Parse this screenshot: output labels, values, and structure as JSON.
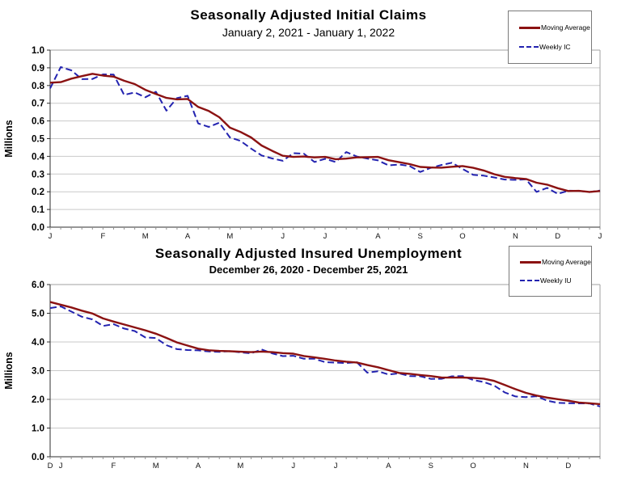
{
  "page": {
    "background": "#FFFFFF"
  },
  "colors": {
    "grid": "#C9C9C9",
    "axis": "#2F2F2F",
    "frame": "#A0A0A0",
    "tick": "#909090",
    "text": "#000000"
  },
  "chart_data": [
    {
      "type": "line",
      "title": "Seasonally Adjusted Initial Claims",
      "subtitle": "January 2, 2021 - January 1, 2022",
      "ylabel": "Millions",
      "xlabel": "",
      "ylim": [
        0.0,
        1.0
      ],
      "ytick_step": 0.1,
      "ytick_decimals": 1,
      "grid": "horizontal",
      "legend_position": "top-right",
      "n_weeks": 53,
      "x_month_ticks": [
        {
          "label": "J",
          "week": 0
        },
        {
          "label": "F",
          "week": 5
        },
        {
          "label": "M",
          "week": 9
        },
        {
          "label": "A",
          "week": 13
        },
        {
          "label": "M",
          "week": 17
        },
        {
          "label": "J",
          "week": 22
        },
        {
          "label": "J",
          "week": 26
        },
        {
          "label": "A",
          "week": 31
        },
        {
          "label": "S",
          "week": 35
        },
        {
          "label": "O",
          "week": 39
        },
        {
          "label": "N",
          "week": 44
        },
        {
          "label": "D",
          "week": 48
        },
        {
          "label": "J",
          "week": 52
        }
      ],
      "series": [
        {
          "name": "Moving Average",
          "color": "#8B1212",
          "style": "solid",
          "values": [
            0.816,
            0.819,
            0.839,
            0.853,
            0.866,
            0.856,
            0.85,
            0.827,
            0.808,
            0.776,
            0.752,
            0.73,
            0.722,
            0.724,
            0.679,
            0.656,
            0.621,
            0.562,
            0.538,
            0.507,
            0.461,
            0.431,
            0.403,
            0.397,
            0.399,
            0.394,
            0.397,
            0.384,
            0.387,
            0.394,
            0.395,
            0.397,
            0.378,
            0.367,
            0.356,
            0.34,
            0.337,
            0.336,
            0.341,
            0.345,
            0.335,
            0.32,
            0.299,
            0.284,
            0.277,
            0.272,
            0.251,
            0.24,
            0.22,
            0.204,
            0.205,
            0.199,
            0.204
          ]
        },
        {
          "name": "Weekly IC",
          "color": "#2323B0",
          "style": "dashed",
          "values": [
            0.784,
            0.904,
            0.886,
            0.836,
            0.837,
            0.863,
            0.862,
            0.747,
            0.761,
            0.734,
            0.765,
            0.658,
            0.729,
            0.742,
            0.586,
            0.566,
            0.59,
            0.507,
            0.487,
            0.444,
            0.405,
            0.388,
            0.375,
            0.418,
            0.415,
            0.368,
            0.386,
            0.368,
            0.424,
            0.399,
            0.387,
            0.377,
            0.349,
            0.354,
            0.345,
            0.312,
            0.335,
            0.351,
            0.364,
            0.329,
            0.296,
            0.291,
            0.281,
            0.269,
            0.267,
            0.27,
            0.199,
            0.222,
            0.188,
            0.206,
            0.205,
            0.198,
            0.207
          ]
        }
      ]
    },
    {
      "type": "line",
      "title": "Seasonally Adjusted Insured Unemployment",
      "subtitle": "December 26, 2020 - December 25, 2021",
      "ylabel": "Millions",
      "xlabel": "",
      "ylim": [
        0.0,
        6.0
      ],
      "ytick_step": 1.0,
      "ytick_decimals": 1,
      "grid": "horizontal",
      "legend_position": "top-right",
      "n_weeks": 53,
      "x_month_ticks": [
        {
          "label": "D",
          "week": 0
        },
        {
          "label": "J",
          "week": 1
        },
        {
          "label": "F",
          "week": 6
        },
        {
          "label": "M",
          "week": 10
        },
        {
          "label": "A",
          "week": 14
        },
        {
          "label": "M",
          "week": 18
        },
        {
          "label": "J",
          "week": 23
        },
        {
          "label": "J",
          "week": 27
        },
        {
          "label": "A",
          "week": 32
        },
        {
          "label": "S",
          "week": 36
        },
        {
          "label": "O",
          "week": 40
        },
        {
          "label": "N",
          "week": 45
        },
        {
          "label": "D",
          "week": 49
        }
      ],
      "series": [
        {
          "name": "Moving Average",
          "color": "#8B1212",
          "style": "solid",
          "values": [
            5.392,
            5.298,
            5.204,
            5.09,
            4.991,
            4.82,
            4.71,
            4.608,
            4.507,
            4.407,
            4.286,
            4.14,
            3.982,
            3.872,
            3.765,
            3.71,
            3.686,
            3.677,
            3.66,
            3.644,
            3.665,
            3.646,
            3.612,
            3.592,
            3.51,
            3.463,
            3.41,
            3.351,
            3.314,
            3.284,
            3.193,
            3.118,
            3.018,
            2.921,
            2.891,
            2.848,
            2.81,
            2.761,
            2.759,
            2.761,
            2.75,
            2.722,
            2.642,
            2.499,
            2.356,
            2.225,
            2.132,
            2.061,
            2.005,
            1.952,
            1.89,
            1.865,
            1.834
          ]
        },
        {
          "name": "Weekly IU",
          "color": "#2323B0",
          "style": "dashed",
          "values": [
            5.18,
            5.24,
            5.06,
            4.878,
            4.785,
            4.558,
            4.619,
            4.469,
            4.381,
            4.157,
            4.136,
            3.886,
            3.749,
            3.717,
            3.708,
            3.667,
            3.653,
            3.68,
            3.64,
            3.602,
            3.738,
            3.602,
            3.507,
            3.519,
            3.413,
            3.413,
            3.296,
            3.28,
            3.265,
            3.296,
            2.93,
            2.98,
            2.866,
            2.908,
            2.811,
            2.805,
            2.714,
            2.715,
            2.802,
            2.811,
            2.672,
            2.603,
            2.48,
            2.239,
            2.101,
            2.08,
            2.109,
            1.954,
            1.878,
            1.867,
            1.859,
            1.856,
            1.753
          ]
        }
      ]
    }
  ]
}
